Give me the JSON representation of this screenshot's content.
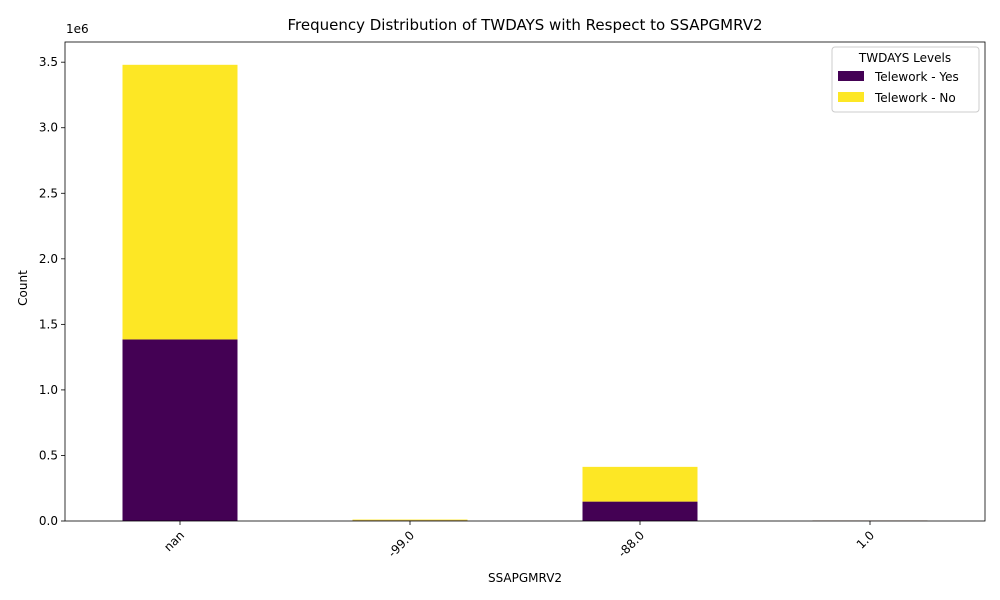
{
  "chart_data": {
    "type": "bar",
    "stacked": true,
    "title": "Frequency Distribution of TWDAYS with Respect to SSAPGMRV2",
    "xlabel": "SSAPGMRV2",
    "ylabel": "Count",
    "y_scale_label": "1e6",
    "categories": [
      "nan",
      "-99.0",
      "-88.0",
      "1.0"
    ],
    "series": [
      {
        "name": "Telework - Yes",
        "color": "#440154",
        "values": [
          1385000,
          5000,
          148000,
          3000
        ]
      },
      {
        "name": "Telework - No",
        "color": "#fde725",
        "values": [
          2095000,
          6000,
          265000,
          1000
        ]
      }
    ],
    "ylim": [
      0,
      3654000
    ],
    "yticks": [
      0,
      500000,
      1000000,
      1500000,
      2000000,
      2500000,
      3000000,
      3500000
    ],
    "ytick_labels": [
      "0.0",
      "0.5",
      "1.0",
      "1.5",
      "2.0",
      "2.5",
      "3.0",
      "3.5"
    ],
    "legend": {
      "title": "TWDAYS Levels",
      "placement": "top-right"
    },
    "grid": false
  }
}
